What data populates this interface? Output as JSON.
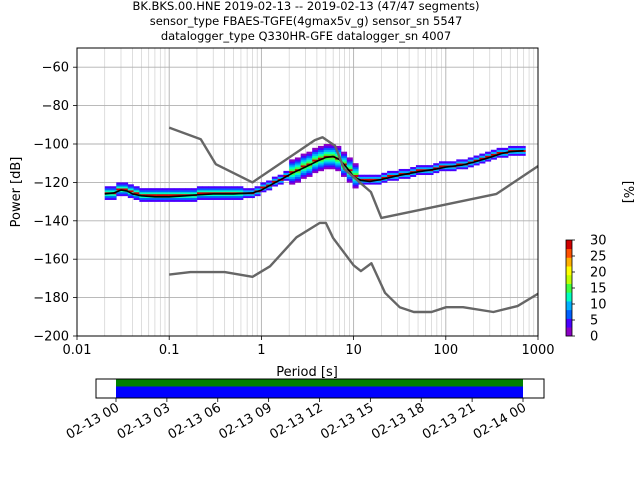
{
  "figure": {
    "title_lines": [
      "BK.BKS.00.HNE   2019-02-13 -- 2019-02-13  (47/47 segments)",
      "sensor_type FBAES-TGFE(4gmax5v_g) sensor_sn 5547",
      "datalogger_type Q330HR-GFE datalogger_sn 4007"
    ]
  },
  "chart_data": [
    {
      "type": "heatmap",
      "title": "",
      "xlabel": "Period [s]",
      "ylabel": "Power [dB]",
      "xscale": "log",
      "xlim": [
        0.01,
        1000
      ],
      "ylim": [
        -200,
        -50
      ],
      "grid": true,
      "x_ticks": [
        "0.01",
        "0.1",
        "1",
        "10",
        "100",
        "1000"
      ],
      "y_ticks": [
        "-60",
        "-80",
        "-100",
        "-120",
        "-140",
        "-160",
        "-180",
        "-200"
      ],
      "colorbar": {
        "label": "[%]",
        "range": [
          0,
          30
        ],
        "ticks": [
          "0",
          "5",
          "10",
          "15",
          "20",
          "25",
          "30"
        ]
      },
      "series": [
        {
          "name": "",
          "role": "mode",
          "color": "#000000",
          "points": [
            [
              0.02,
              -126
            ],
            [
              0.025,
              -125.5
            ],
            [
              0.03,
              -124
            ],
            [
              0.035,
              -124.5
            ],
            [
              0.04,
              -126
            ],
            [
              0.05,
              -127
            ],
            [
              0.07,
              -127.5
            ],
            [
              0.1,
              -127.5
            ],
            [
              0.15,
              -127
            ],
            [
              0.2,
              -126.5
            ],
            [
              0.3,
              -126
            ],
            [
              0.5,
              -126
            ],
            [
              0.8,
              -125.5
            ],
            [
              1,
              -124
            ],
            [
              1.3,
              -121
            ],
            [
              1.7,
              -118
            ],
            [
              2.2,
              -115
            ],
            [
              3,
              -112
            ],
            [
              4,
              -109
            ],
            [
              5,
              -107
            ],
            [
              6,
              -106.5
            ],
            [
              7,
              -108
            ],
            [
              8,
              -111
            ],
            [
              9,
              -114
            ],
            [
              10,
              -117
            ],
            [
              12,
              -119
            ],
            [
              15,
              -119.5
            ],
            [
              20,
              -118.5
            ],
            [
              30,
              -116.5
            ],
            [
              50,
              -114.5
            ],
            [
              80,
              -113
            ],
            [
              100,
              -112
            ],
            [
              150,
              -111
            ],
            [
              200,
              -109.5
            ],
            [
              300,
              -107
            ],
            [
              400,
              -105
            ],
            [
              500,
              -104
            ],
            [
              700,
              -103.5
            ]
          ]
        },
        {
          "name": "",
          "role": "high_noise_model",
          "color": "#666666",
          "points": [
            [
              0.1,
              -91.5
            ],
            [
              0.22,
              -97.5
            ],
            [
              0.32,
              -110.5
            ],
            [
              0.8,
              -120
            ],
            [
              3.8,
              -98
            ],
            [
              4.6,
              -96.5
            ],
            [
              6.3,
              -101
            ],
            [
              7.9,
              -113
            ],
            [
              15.4,
              -125
            ],
            [
              20,
              -138.5
            ],
            [
              354.8,
              -126
            ],
            [
              1000,
              -111.5
            ]
          ]
        },
        {
          "name": "",
          "role": "low_noise_model",
          "color": "#666666",
          "points": [
            [
              0.1,
              -168
            ],
            [
              0.17,
              -166.7
            ],
            [
              0.4,
              -166.7
            ],
            [
              0.8,
              -169.2
            ],
            [
              1.24,
              -163.7
            ],
            [
              2.4,
              -148.6
            ],
            [
              4.3,
              -141.1
            ],
            [
              5,
              -141.1
            ],
            [
              6,
              -149
            ],
            [
              10,
              -163.2
            ],
            [
              12,
              -166.2
            ],
            [
              15.6,
              -162.1
            ],
            [
              21.9,
              -177.5
            ],
            [
              31.6,
              -185
            ],
            [
              45,
              -187.5
            ],
            [
              70,
              -187.5
            ],
            [
              101,
              -185
            ],
            [
              154,
              -185
            ],
            [
              328,
              -187.5
            ],
            [
              600,
              -184.4
            ],
            [
              1000,
              -178
            ]
          ]
        }
      ]
    },
    {
      "type": "bar",
      "title": "",
      "xlabel": "",
      "ylabel": "",
      "x_ticks": [
        "02-13 00",
        "02-13 03",
        "02-13 06",
        "02-13 09",
        "02-13 12",
        "02-13 15",
        "02-13 18",
        "02-13 21",
        "02-14 00"
      ],
      "coverage_start": "02-13 00",
      "coverage_end": "02-14 00",
      "series": [
        {
          "name": "",
          "role": "used",
          "color": "#008000"
        },
        {
          "name": "",
          "role": "available",
          "color": "#0000ff"
        }
      ]
    }
  ]
}
